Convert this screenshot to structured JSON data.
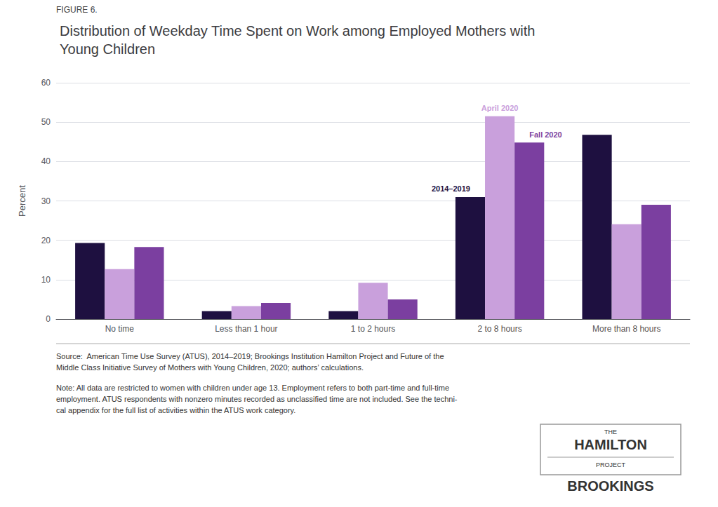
{
  "chart_data": {
    "type": "bar",
    "subtitle": "FIGURE 6.",
    "title": "Distribution of Weekday Time Spent on Work among Employed Mothers with\nYoung Children",
    "categories": [
      "No time",
      "Less than 1 hour",
      "1 to 2 hours",
      "2 to 8 hours",
      "More than 8 hours"
    ],
    "series": [
      {
        "name": "2014–2019",
        "color": "#1e1040",
        "values": [
          19.3,
          2.0,
          2.0,
          31.0,
          46.8
        ]
      },
      {
        "name": "April 2020",
        "color": "#c9a0dc",
        "values": [
          12.7,
          3.3,
          9.2,
          51.5,
          24.1
        ]
      },
      {
        "name": "Fall 2020",
        "color": "#7b3fa0",
        "values": [
          18.3,
          4.1,
          5.0,
          44.8,
          29.0
        ]
      }
    ],
    "ylabel": "Percent",
    "ylim": [
      0,
      60
    ],
    "yticks": [
      0,
      10,
      20,
      30,
      40,
      50,
      60
    ],
    "grid": true,
    "annotations": [
      {
        "text": "2014–2019",
        "series": "2014–2019",
        "category": "2 to 8 hours"
      },
      {
        "text": "April 2020",
        "series": "April 2020",
        "category": "2 to 8 hours"
      },
      {
        "text": "Fall 2020",
        "series": "Fall 2020",
        "category": "2 to 8 hours"
      }
    ],
    "source": "Source:  American Time Use Survey (ATUS), 2014–2019; Brookings Institution Hamilton Project and Future of the\nMiddle Class Initiative Survey of Mothers with Young Children, 2020; authors’ calculations.",
    "note": "Note: All data are restricted to women with children under age 13. Employment refers to both part-time and full-time\nemployment. ATUS respondents with nonzero minutes recorded as unclassified time are not included. See the techni-\ncal appendix for the full list of activities within the ATUS work category.",
    "logo": [
      "THE",
      "HAMILTON",
      "PROJECT",
      "BROOKINGS"
    ]
  }
}
